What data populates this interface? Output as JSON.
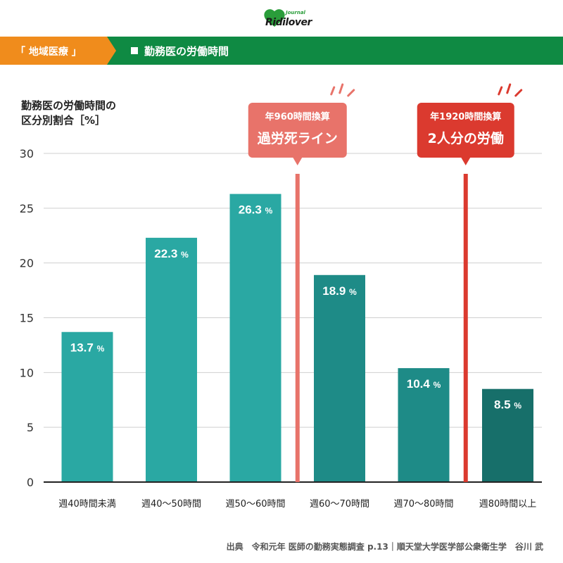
{
  "brand": {
    "name": "Ridilover",
    "sub": "Journal"
  },
  "header": {
    "tag": "「 地域医療 」",
    "title": "勤務医の労働時間"
  },
  "colors": {
    "green": "#0f8a43",
    "orange": "#f08c1c",
    "bar_light": "#2aa8a3",
    "bar_mid": "#1e8b87",
    "bar_dark": "#176f6a",
    "line_salmon": "#e8736a",
    "line_red": "#db3a2f"
  },
  "chart_data": {
    "type": "bar",
    "ylabel": [
      "勤務医の労働時間の",
      "区分別割合［%］"
    ],
    "ylim": [
      0,
      30
    ],
    "yticks": [
      "0",
      "5",
      "10",
      "15",
      "20",
      "25",
      "30"
    ],
    "grid": true,
    "categories": [
      "週40時間未満",
      "週40〜50時間",
      "週50〜60時間",
      "週60〜70時間",
      "週70〜80時間",
      "週80時間以上"
    ],
    "values": [
      13.7,
      22.3,
      26.3,
      18.9,
      10.4,
      8.5
    ],
    "value_labels": [
      "13.7",
      "22.3",
      "26.3",
      "18.9",
      "10.4",
      "8.5"
    ],
    "unit": "%",
    "annotations": [
      {
        "between": [
          2,
          3
        ],
        "line1": "年960時間換算",
        "line2": "過労死ライン"
      },
      {
        "between": [
          4,
          5
        ],
        "line1": "年1920時間換算",
        "line2": "2人分の労働"
      }
    ]
  },
  "source": "出典　令和元年 医師の勤務実態調査 p.13｜順天堂大学医学部公衆衛生学　谷川 武"
}
